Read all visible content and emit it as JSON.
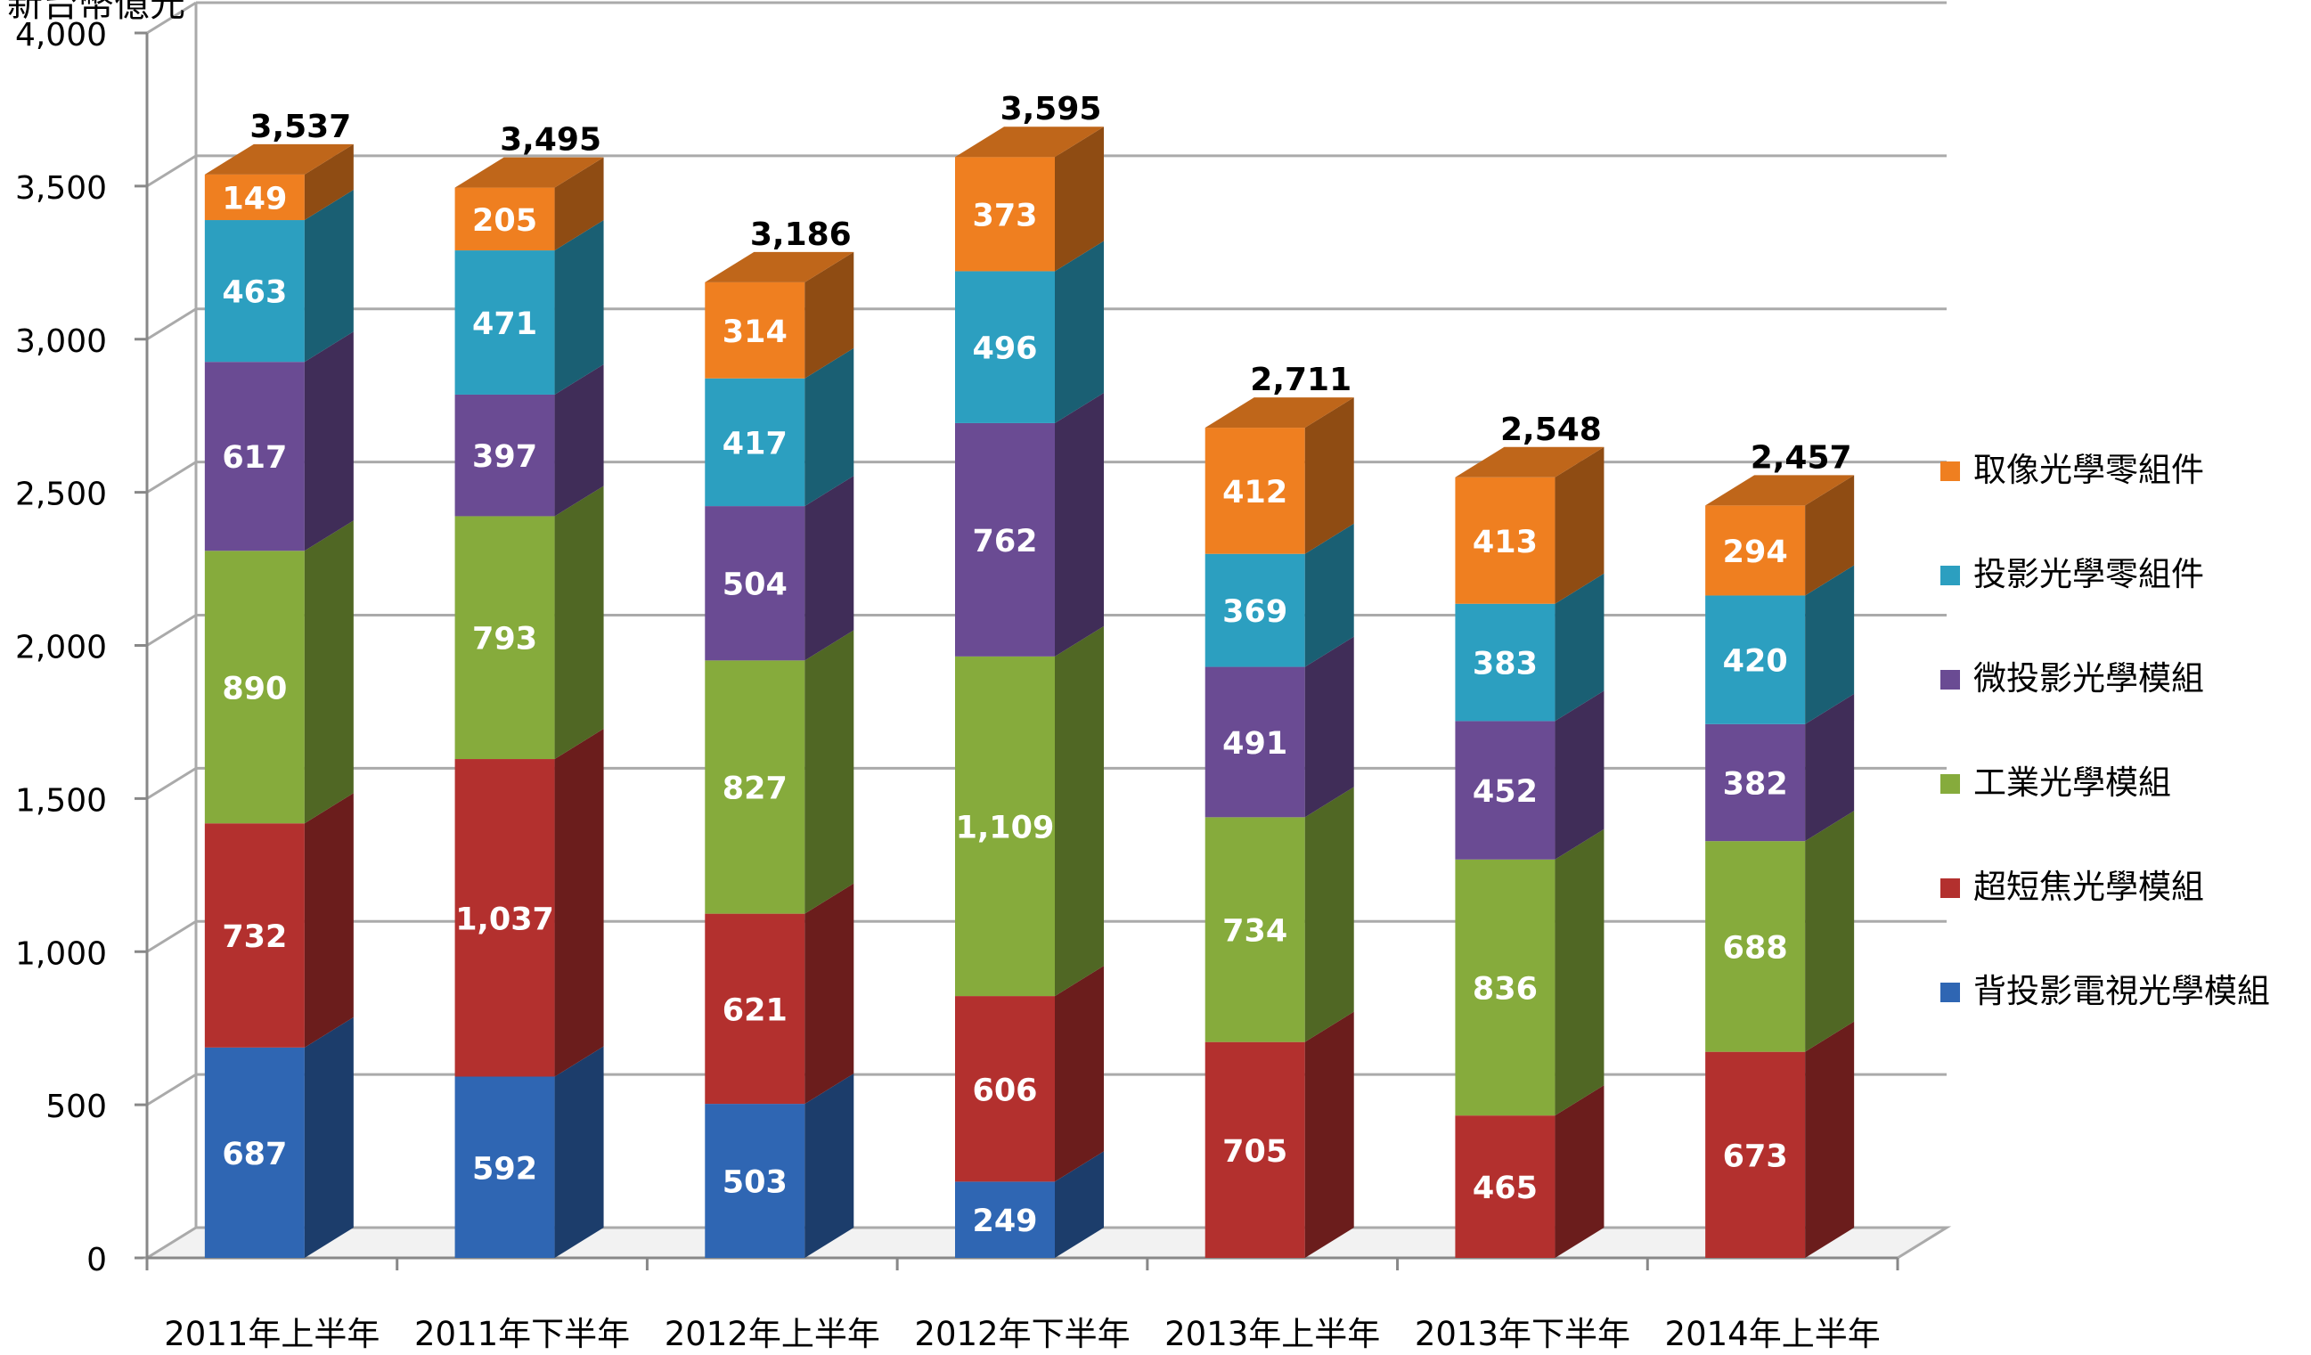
{
  "chart_data": {
    "type": "bar",
    "stacked": true,
    "style": "3d-column",
    "unit_label": "新台幣億元",
    "categories": [
      "2011年上半年",
      "2011年下半年",
      "2012年上半年",
      "2012年下半年",
      "2013年上半年",
      "2013年下半年",
      "2014年上半年"
    ],
    "series": [
      {
        "name": "背投影電視光學模組",
        "color": "#2f66b3",
        "values": [
          687,
          592,
          503,
          249,
          null,
          null,
          null
        ]
      },
      {
        "name": "超短焦光學模組",
        "color": "#b3302e",
        "values": [
          732,
          1037,
          621,
          606,
          705,
          465,
          673
        ]
      },
      {
        "name": "工業光學模組",
        "color": "#86ab3c",
        "values": [
          890,
          793,
          827,
          1109,
          734,
          836,
          688
        ]
      },
      {
        "name": "微投影光學模組",
        "color": "#6a4b93",
        "values": [
          617,
          397,
          504,
          762,
          491,
          452,
          382
        ]
      },
      {
        "name": "投影光學零組件",
        "color": "#2c9fc0",
        "values": [
          463,
          471,
          417,
          496,
          369,
          383,
          420
        ]
      },
      {
        "name": "取像光學零組件",
        "color": "#ef7f20",
        "values": [
          149,
          205,
          314,
          373,
          412,
          413,
          294
        ]
      }
    ],
    "data_labels": [
      [
        "687",
        "592",
        "503",
        "249",
        "",
        "",
        ""
      ],
      [
        "732",
        "1,037",
        "621",
        "606",
        "705",
        "465",
        "673"
      ],
      [
        "890",
        "793",
        "827",
        "1,109",
        "734",
        "836",
        "688"
      ],
      [
        "617",
        "397",
        "504",
        "762",
        "491",
        "452",
        "382"
      ],
      [
        "463",
        "471",
        "417",
        "496",
        "369",
        "383",
        "420"
      ],
      [
        "149",
        "205",
        "314",
        "373",
        "412",
        "413",
        "294"
      ]
    ],
    "totals": [
      3537,
      3495,
      3186,
      3595,
      2711,
      2548,
      2457
    ],
    "total_labels": [
      "3,537",
      "3,495",
      "3,186",
      "3,595",
      "2,711",
      "2,548",
      "2,457"
    ],
    "ylim": [
      0,
      4000
    ],
    "yticks": [
      0,
      500,
      1000,
      1500,
      2000,
      2500,
      3000,
      3500,
      4000
    ],
    "ytick_labels": [
      "0",
      "500",
      "1,000",
      "1,500",
      "2,000",
      "2,500",
      "3,000",
      "3,500",
      "4,000"
    ],
    "grid": true,
    "legend_position": "right",
    "legend_order": "reversed"
  }
}
